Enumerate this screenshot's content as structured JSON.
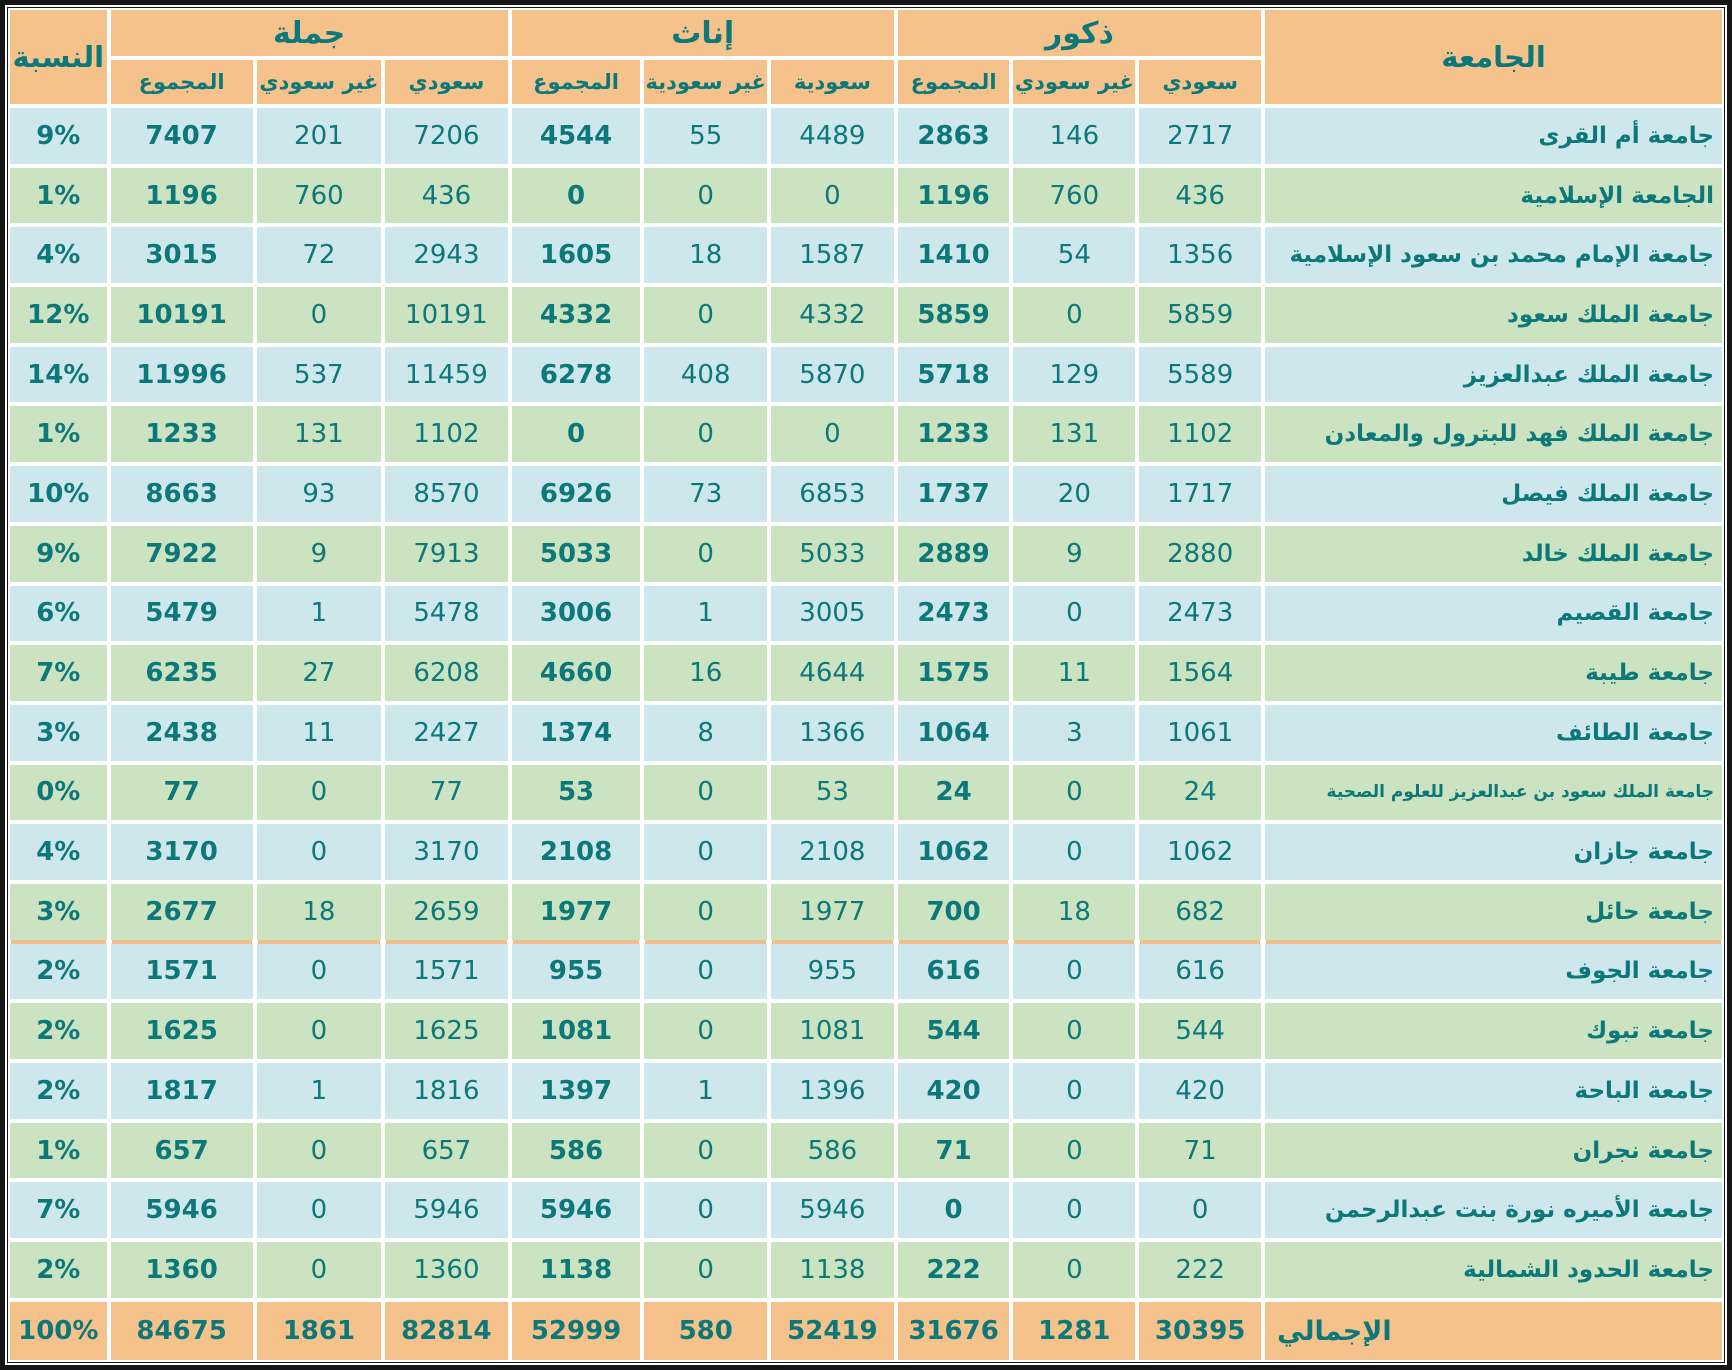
{
  "colors": {
    "header_bg": "#F6C28B",
    "row_blue": "#CDE7EC",
    "row_green": "#CBE3C0",
    "text_teal": "#0D7879",
    "frame": "#161616",
    "grid_white": "#FFFFFF",
    "split_line": "#F2BF8C"
  },
  "header": {
    "pct": "النسبة",
    "university": "الجامعة",
    "total_group": "جملة",
    "female_group": "إناث",
    "male_group": "ذكور",
    "sum": "المجموع",
    "non_saudi_m": "غير سعودي",
    "saudi_m": "سعودي",
    "non_saudi_f": "غير سعودية",
    "saudi_f": "سعودية"
  },
  "rows": [
    {
      "university": "جامعة أم القرى",
      "pct": "9%",
      "total_sum": "7407",
      "total_non_saudi": "201",
      "total_saudi": "7206",
      "female_sum": "4544",
      "female_non_saudi": "55",
      "female_saudi": "4489",
      "male_sum": "2863",
      "male_non_saudi": "146",
      "male_saudi": "2717"
    },
    {
      "university": "الجامعة الإسلامية",
      "pct": "1%",
      "total_sum": "1196",
      "total_non_saudi": "760",
      "total_saudi": "436",
      "female_sum": "0",
      "female_non_saudi": "0",
      "female_saudi": "0",
      "male_sum": "1196",
      "male_non_saudi": "760",
      "male_saudi": "436"
    },
    {
      "university": "جامعة الإمام محمد بن سعود الإسلامية",
      "pct": "4%",
      "total_sum": "3015",
      "total_non_saudi": "72",
      "total_saudi": "2943",
      "female_sum": "1605",
      "female_non_saudi": "18",
      "female_saudi": "1587",
      "male_sum": "1410",
      "male_non_saudi": "54",
      "male_saudi": "1356"
    },
    {
      "university": "جامعة الملك سعود",
      "pct": "12%",
      "total_sum": "10191",
      "total_non_saudi": "0",
      "total_saudi": "10191",
      "female_sum": "4332",
      "female_non_saudi": "0",
      "female_saudi": "4332",
      "male_sum": "5859",
      "male_non_saudi": "0",
      "male_saudi": "5859"
    },
    {
      "university": "جامعة الملك عبدالعزيز",
      "pct": "14%",
      "total_sum": "11996",
      "total_non_saudi": "537",
      "total_saudi": "11459",
      "female_sum": "6278",
      "female_non_saudi": "408",
      "female_saudi": "5870",
      "male_sum": "5718",
      "male_non_saudi": "129",
      "male_saudi": "5589"
    },
    {
      "university": "جامعة الملك فهد للبترول والمعادن",
      "pct": "1%",
      "total_sum": "1233",
      "total_non_saudi": "131",
      "total_saudi": "1102",
      "female_sum": "0",
      "female_non_saudi": "0",
      "female_saudi": "0",
      "male_sum": "1233",
      "male_non_saudi": "131",
      "male_saudi": "1102"
    },
    {
      "university": "جامعة الملك فيصل",
      "pct": "10%",
      "total_sum": "8663",
      "total_non_saudi": "93",
      "total_saudi": "8570",
      "female_sum": "6926",
      "female_non_saudi": "73",
      "female_saudi": "6853",
      "male_sum": "1737",
      "male_non_saudi": "20",
      "male_saudi": "1717"
    },
    {
      "university": "جامعة الملك خالد",
      "pct": "9%",
      "total_sum": "7922",
      "total_non_saudi": "9",
      "total_saudi": "7913",
      "female_sum": "5033",
      "female_non_saudi": "0",
      "female_saudi": "5033",
      "male_sum": "2889",
      "male_non_saudi": "9",
      "male_saudi": "2880"
    },
    {
      "university": "جامعة القصيم",
      "pct": "6%",
      "total_sum": "5479",
      "total_non_saudi": "1",
      "total_saudi": "5478",
      "female_sum": "3006",
      "female_non_saudi": "1",
      "female_saudi": "3005",
      "male_sum": "2473",
      "male_non_saudi": "0",
      "male_saudi": "2473"
    },
    {
      "university": "جامعة طيبة",
      "pct": "7%",
      "total_sum": "6235",
      "total_non_saudi": "27",
      "total_saudi": "6208",
      "female_sum": "4660",
      "female_non_saudi": "16",
      "female_saudi": "4644",
      "male_sum": "1575",
      "male_non_saudi": "11",
      "male_saudi": "1564"
    },
    {
      "university": "جامعة الطائف",
      "pct": "3%",
      "total_sum": "2438",
      "total_non_saudi": "11",
      "total_saudi": "2427",
      "female_sum": "1374",
      "female_non_saudi": "8",
      "female_saudi": "1366",
      "male_sum": "1064",
      "male_non_saudi": "3",
      "male_saudi": "1061"
    },
    {
      "university": "جامعة الملك سعود بن عبدالعزيز للعلوم الصحية",
      "pct": "0%",
      "total_sum": "77",
      "total_non_saudi": "0",
      "total_saudi": "77",
      "female_sum": "53",
      "female_non_saudi": "0",
      "female_saudi": "53",
      "male_sum": "24",
      "male_non_saudi": "0",
      "male_saudi": "24"
    },
    {
      "university": "جامعة جازان",
      "pct": "4%",
      "total_sum": "3170",
      "total_non_saudi": "0",
      "total_saudi": "3170",
      "female_sum": "2108",
      "female_non_saudi": "0",
      "female_saudi": "2108",
      "male_sum": "1062",
      "male_non_saudi": "0",
      "male_saudi": "1062"
    },
    {
      "university": "جامعة حائل",
      "pct": "3%",
      "total_sum": "2677",
      "total_non_saudi": "18",
      "total_saudi": "2659",
      "female_sum": "1977",
      "female_non_saudi": "0",
      "female_saudi": "1977",
      "male_sum": "700",
      "male_non_saudi": "18",
      "male_saudi": "682"
    },
    {
      "university": "جامعة الجوف",
      "pct": "2%",
      "total_sum": "1571",
      "total_non_saudi": "0",
      "total_saudi": "1571",
      "female_sum": "955",
      "female_non_saudi": "0",
      "female_saudi": "955",
      "male_sum": "616",
      "male_non_saudi": "0",
      "male_saudi": "616"
    },
    {
      "university": "جامعة تبوك",
      "pct": "2%",
      "total_sum": "1625",
      "total_non_saudi": "0",
      "total_saudi": "1625",
      "female_sum": "1081",
      "female_non_saudi": "0",
      "female_saudi": "1081",
      "male_sum": "544",
      "male_non_saudi": "0",
      "male_saudi": "544"
    },
    {
      "university": "جامعة الباحة",
      "pct": "2%",
      "total_sum": "1817",
      "total_non_saudi": "1",
      "total_saudi": "1816",
      "female_sum": "1397",
      "female_non_saudi": "1",
      "female_saudi": "1396",
      "male_sum": "420",
      "male_non_saudi": "0",
      "male_saudi": "420"
    },
    {
      "university": "جامعة نجران",
      "pct": "1%",
      "total_sum": "657",
      "total_non_saudi": "0",
      "total_saudi": "657",
      "female_sum": "586",
      "female_non_saudi": "0",
      "female_saudi": "586",
      "male_sum": "71",
      "male_non_saudi": "0",
      "male_saudi": "71"
    },
    {
      "university": "جامعة الأميره نورة بنت عبدالرحمن",
      "pct": "7%",
      "total_sum": "5946",
      "total_non_saudi": "0",
      "total_saudi": "5946",
      "female_sum": "5946",
      "female_non_saudi": "0",
      "female_saudi": "5946",
      "male_sum": "0",
      "male_non_saudi": "0",
      "male_saudi": "0"
    },
    {
      "university": "جامعة الحدود الشمالية",
      "pct": "2%",
      "total_sum": "1360",
      "total_non_saudi": "0",
      "total_saudi": "1360",
      "female_sum": "1138",
      "female_non_saudi": "0",
      "female_saudi": "1138",
      "male_sum": "222",
      "male_non_saudi": "0",
      "male_saudi": "222"
    }
  ],
  "footer": {
    "university": "الإجمالي",
    "pct": "100%",
    "total_sum": "84675",
    "total_non_saudi": "1861",
    "total_saudi": "82814",
    "female_sum": "52999",
    "female_non_saudi": "580",
    "female_saudi": "52419",
    "male_sum": "31676",
    "male_non_saudi": "1281",
    "male_saudi": "30395"
  }
}
